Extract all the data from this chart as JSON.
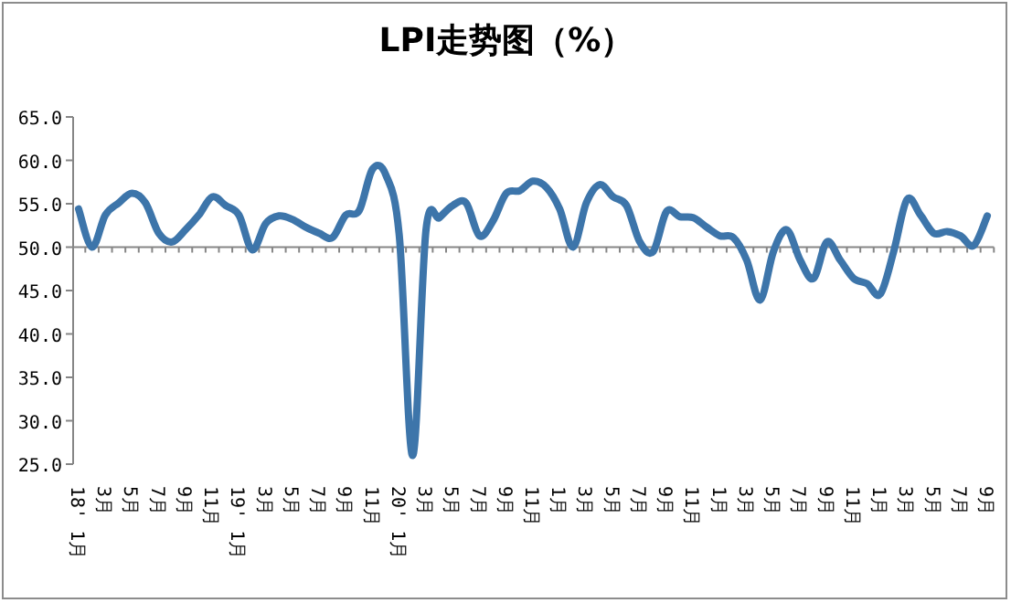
{
  "chart_data": {
    "type": "line",
    "title": "LPI走势图（%）",
    "categories": [
      "18' 1月",
      null,
      "3月",
      null,
      "5月",
      null,
      "7月",
      null,
      "9月",
      null,
      "11月",
      null,
      "19' 1月",
      null,
      "3月",
      null,
      "5月",
      null,
      "7月",
      null,
      "9月",
      null,
      "11月",
      null,
      "20' 1月",
      null,
      "3月",
      null,
      "5月",
      null,
      "7月",
      null,
      "9月",
      null,
      "11月",
      null,
      "1月",
      null,
      "3月",
      null,
      "5月",
      null,
      "7月",
      null,
      "9月",
      null,
      "11月",
      null,
      "1月",
      null,
      "3月",
      null,
      "5月",
      null,
      "7月",
      null,
      "9月",
      null,
      "11月",
      null,
      "1月",
      null,
      "3月",
      null,
      "5月",
      null,
      "7月",
      null,
      "9月"
    ],
    "series": [
      {
        "color": "#3d75aa",
        "values": [
          54.4,
          50.0,
          53.7,
          55.1,
          56.2,
          55.1,
          51.6,
          50.6,
          52.0,
          53.7,
          55.8,
          54.8,
          53.7,
          49.7,
          52.7,
          53.6,
          53.2,
          52.3,
          51.6,
          51.1,
          53.7,
          54.2,
          59.0,
          58.3,
          51.3,
          26.0,
          52.0,
          53.4,
          54.8,
          55.1,
          51.3,
          53.0,
          56.2,
          56.5,
          57.6,
          56.9,
          54.4,
          50.0,
          55.1,
          57.2,
          55.8,
          54.8,
          50.6,
          49.5,
          54.1,
          53.5,
          53.4,
          52.3,
          51.3,
          51.1,
          48.5,
          43.9,
          49.5,
          52.0,
          48.5,
          46.4,
          50.6,
          48.5,
          46.4,
          45.8,
          44.6,
          49.5,
          55.5,
          53.7,
          51.6,
          51.8,
          51.3,
          50.2,
          53.6
        ]
      }
    ],
    "ylim": [
      25,
      65
    ],
    "ref_lines": [
      {
        "axis": "y",
        "value": 50
      }
    ],
    "yticks": [
      {
        "value": 25,
        "label": "25.0"
      },
      {
        "value": 30,
        "label": "30.0"
      },
      {
        "value": 35,
        "label": "35.0"
      },
      {
        "value": 40,
        "label": "40.0"
      },
      {
        "value": 45,
        "label": "45.0"
      },
      {
        "value": 50,
        "label": "50.0"
      },
      {
        "value": 55,
        "label": "55.0"
      },
      {
        "value": 60,
        "label": "60.0"
      },
      {
        "value": 65,
        "label": "65.0"
      }
    ]
  }
}
